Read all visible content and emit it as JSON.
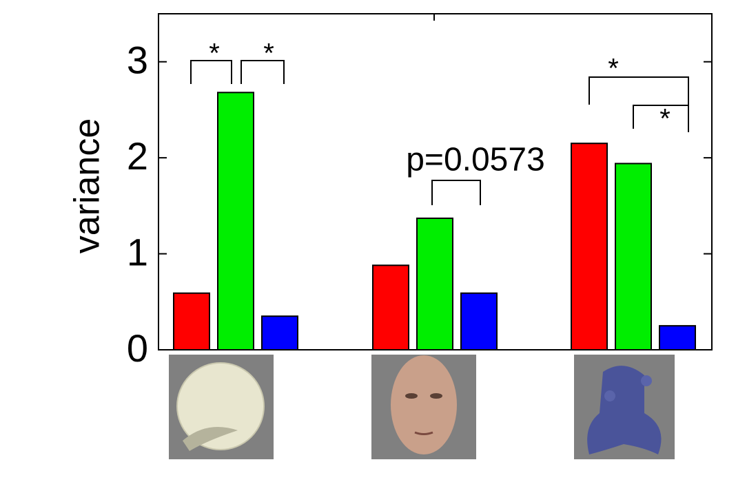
{
  "chart_data": {
    "type": "bar",
    "y_label": "variance",
    "categories": [
      null,
      null,
      null
    ],
    "series": [
      {
        "color": "#ff0000",
        "values": [
          0.59,
          0.88,
          2.15
        ]
      },
      {
        "color": "#00ee00",
        "values": [
          2.68,
          1.37,
          1.94
        ]
      },
      {
        "color": "#0000ff",
        "values": [
          0.35,
          0.59,
          0.25
        ]
      }
    ],
    "ylim": [
      0,
      3.5
    ],
    "yticks": [
      0,
      1,
      2,
      3
    ],
    "annotations": [
      "*",
      "*",
      "p=0.0573",
      "*",
      "*"
    ]
  }
}
